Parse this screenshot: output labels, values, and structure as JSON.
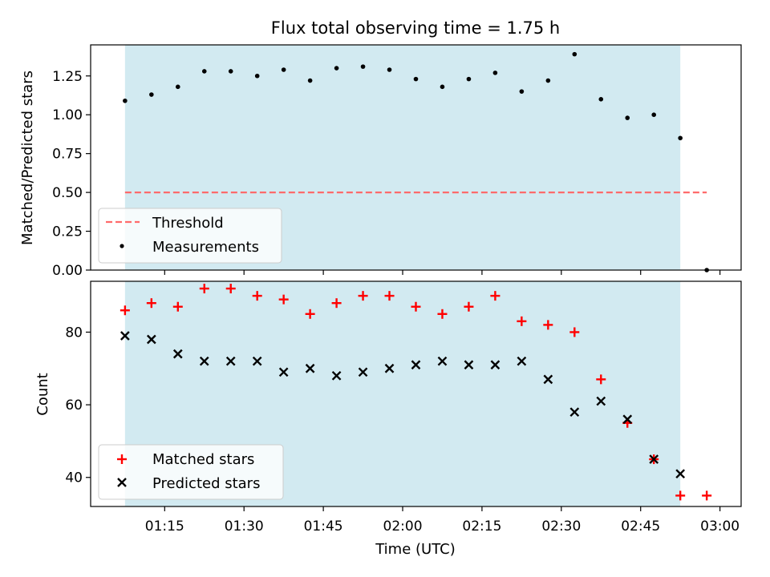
{
  "chart_data": [
    {
      "type": "scatter",
      "title": "Flux total observing time = 1.75 h",
      "xlabel": "",
      "ylabel": "Matched/Predicted stars",
      "ylim": [
        0,
        1.45
      ],
      "yticks": [
        0.0,
        0.25,
        0.5,
        0.75,
        1.0,
        1.25
      ],
      "ytick_labels": [
        "0.00",
        "0.25",
        "0.50",
        "0.75",
        "1.00",
        "1.25"
      ],
      "x_range": [
        "01:01",
        "03:04"
      ],
      "shaded_span": [
        "01:07:30",
        "02:52:30"
      ],
      "shade_color": "#add8e6",
      "legend_position": "lower-left",
      "threshold": {
        "name": "Threshold",
        "value": 0.5,
        "x": [
          "01:07:30",
          "02:57:30"
        ],
        "color": "#ff6b6b"
      },
      "series": [
        {
          "name": "Measurements",
          "color": "#000000",
          "x": [
            "01:07:30",
            "01:12:30",
            "01:17:30",
            "01:22:30",
            "01:27:30",
            "01:32:30",
            "01:37:30",
            "01:42:30",
            "01:47:30",
            "01:52:30",
            "01:57:30",
            "02:02:30",
            "02:07:30",
            "02:12:30",
            "02:17:30",
            "02:22:30",
            "02:27:30",
            "02:32:30",
            "02:37:30",
            "02:42:30",
            "02:47:30",
            "02:52:30",
            "02:57:30"
          ],
          "values": [
            1.09,
            1.13,
            1.18,
            1.28,
            1.28,
            1.25,
            1.29,
            1.22,
            1.3,
            1.31,
            1.29,
            1.23,
            1.18,
            1.23,
            1.27,
            1.15,
            1.22,
            1.39,
            1.1,
            0.98,
            1.0,
            0.85,
            0.0
          ]
        }
      ]
    },
    {
      "type": "scatter",
      "title": "",
      "xlabel": "Time (UTC)",
      "ylabel": "Count",
      "ylim": [
        32,
        94
      ],
      "yticks": [
        40,
        60,
        80
      ],
      "ytick_labels": [
        "40",
        "60",
        "80"
      ],
      "x_range": [
        "01:01",
        "03:04"
      ],
      "xticks": [
        "01:15",
        "01:30",
        "01:45",
        "02:00",
        "02:15",
        "02:30",
        "02:45",
        "03:00"
      ],
      "shaded_span": [
        "01:07:30",
        "02:52:30"
      ],
      "shade_color": "#add8e6",
      "legend_position": "lower-left",
      "series": [
        {
          "name": "Matched stars",
          "marker": "plus",
          "color": "#ff0000",
          "x": [
            "01:07:30",
            "01:12:30",
            "01:17:30",
            "01:22:30",
            "01:27:30",
            "01:32:30",
            "01:37:30",
            "01:42:30",
            "01:47:30",
            "01:52:30",
            "01:57:30",
            "02:02:30",
            "02:07:30",
            "02:12:30",
            "02:17:30",
            "02:22:30",
            "02:27:30",
            "02:32:30",
            "02:37:30",
            "02:42:30",
            "02:47:30",
            "02:52:30",
            "02:57:30"
          ],
          "values": [
            86,
            88,
            87,
            92,
            92,
            90,
            89,
            85,
            88,
            90,
            90,
            87,
            85,
            87,
            90,
            83,
            82,
            80,
            67,
            55,
            45,
            35,
            35
          ]
        },
        {
          "name": "Predicted stars",
          "marker": "x",
          "color": "#000000",
          "x": [
            "01:07:30",
            "01:12:30",
            "01:17:30",
            "01:22:30",
            "01:27:30",
            "01:32:30",
            "01:37:30",
            "01:42:30",
            "01:47:30",
            "01:52:30",
            "01:57:30",
            "02:02:30",
            "02:07:30",
            "02:12:30",
            "02:17:30",
            "02:22:30",
            "02:27:30",
            "02:32:30",
            "02:37:30",
            "02:42:30",
            "02:47:30",
            "02:52:30"
          ],
          "values": [
            79,
            78,
            74,
            72,
            72,
            72,
            69,
            70,
            68,
            69,
            70,
            71,
            72,
            71,
            71,
            72,
            67,
            58,
            61,
            56,
            45,
            41
          ]
        }
      ]
    }
  ]
}
